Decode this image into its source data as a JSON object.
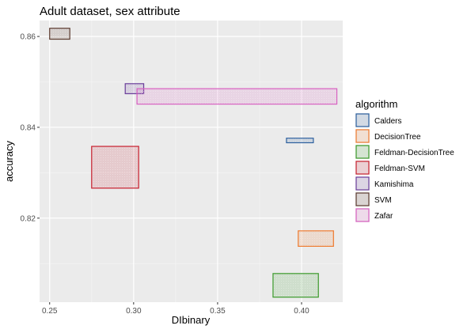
{
  "chart_data": {
    "type": "rect",
    "title": "Adult dataset, sex attribute",
    "xlabel": "DIbinary",
    "ylabel": "accuracy",
    "xlim": [
      0.244,
      0.4245
    ],
    "ylim": [
      0.8015,
      0.8635
    ],
    "x_ticks": [
      0.25,
      0.3,
      0.35,
      0.4
    ],
    "x_tick_labels": [
      "0.25",
      "0.30",
      "0.35",
      "0.40"
    ],
    "y_ticks": [
      0.82,
      0.84,
      0.86
    ],
    "y_tick_labels": [
      "0.82",
      "0.84",
      "0.86"
    ],
    "grid": true,
    "legend": {
      "title": "algorithm",
      "placement": "right"
    },
    "series": [
      {
        "name": "Calders",
        "color": "#2c5f9e",
        "xmin": 0.391,
        "xmax": 0.407,
        "ymin": 0.8366,
        "ymax": 0.8376
      },
      {
        "name": "DecisionTree",
        "color": "#ee7b30",
        "xmin": 0.398,
        "xmax": 0.419,
        "ymin": 0.8138,
        "ymax": 0.8172
      },
      {
        "name": "Feldman-DecisionTree",
        "color": "#3b9a2a",
        "xmin": 0.383,
        "xmax": 0.41,
        "ymin": 0.8026,
        "ymax": 0.8078
      },
      {
        "name": "Feldman-SVM",
        "color": "#c8202f",
        "xmin": 0.275,
        "xmax": 0.303,
        "ymin": 0.8266,
        "ymax": 0.8358
      },
      {
        "name": "Kamishima",
        "color": "#6a3d9a",
        "xmin": 0.295,
        "xmax": 0.306,
        "ymin": 0.8474,
        "ymax": 0.8496
      },
      {
        "name": "SVM",
        "color": "#5b3a2e",
        "xmin": 0.25,
        "xmax": 0.262,
        "ymin": 0.8594,
        "ymax": 0.8618
      },
      {
        "name": "Zafar",
        "color": "#d75fc0",
        "xmin": 0.302,
        "xmax": 0.421,
        "ymin": 0.8451,
        "ymax": 0.8485
      }
    ]
  }
}
